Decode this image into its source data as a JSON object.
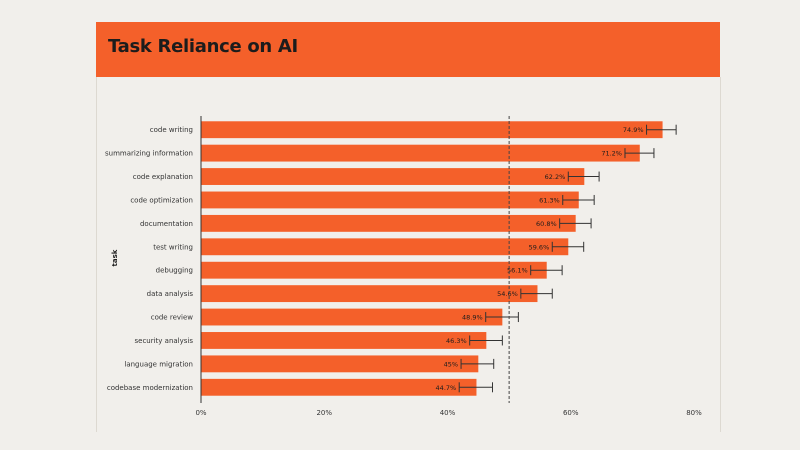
{
  "header": {
    "title": "Task Reliance on AI"
  },
  "colors": {
    "accent": "#f4602a",
    "background": "#f1efeb",
    "error_bar": "#333333",
    "reference_line": "#444444"
  },
  "chart_data": {
    "type": "bar",
    "orientation": "horizontal",
    "ylabel": "task",
    "xlabel": "",
    "xlim": [
      0,
      80
    ],
    "x_ticks": [
      "0%",
      "20%",
      "40%",
      "60%",
      "80%"
    ],
    "reference_line": 50,
    "grid": false,
    "categories": [
      "code writing",
      "summarizing information",
      "code explanation",
      "code optimization",
      "documentation",
      "test writing",
      "debugging",
      "data analysis",
      "code review",
      "security analysis",
      "language migration",
      "codebase modernization"
    ],
    "values": [
      74.9,
      71.2,
      62.2,
      61.3,
      60.8,
      59.6,
      56.1,
      54.6,
      48.9,
      46.3,
      45,
      44.7
    ],
    "data_labels": [
      "74.9%",
      "71.2%",
      "62.2%",
      "61.3%",
      "60.8%",
      "59.6%",
      "56.1%",
      "54.6%",
      "48.9%",
      "46.3%",
      "45%",
      "44.7%"
    ],
    "error_low": [
      72.3,
      68.8,
      59.6,
      58.7,
      58.2,
      57.0,
      53.5,
      51.9,
      46.2,
      43.6,
      42.2,
      41.9
    ],
    "error_high": [
      77.1,
      73.5,
      64.6,
      63.8,
      63.3,
      62.1,
      58.6,
      57.0,
      51.5,
      48.9,
      47.5,
      47.3
    ]
  }
}
